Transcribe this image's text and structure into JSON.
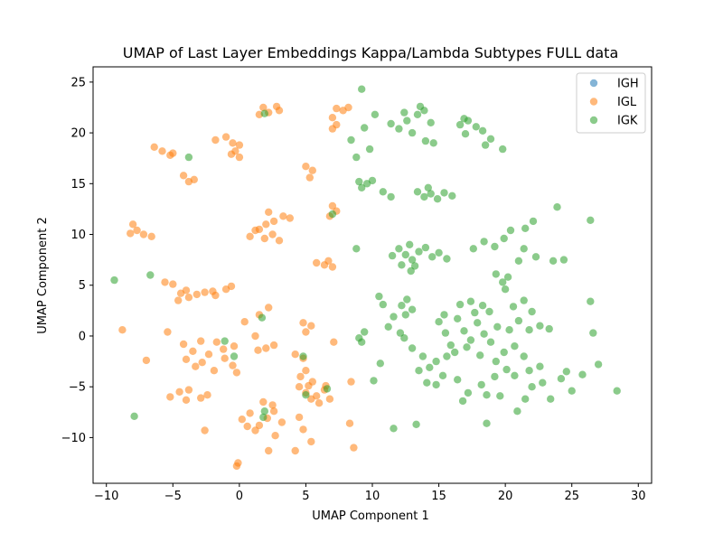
{
  "chart_data": {
    "type": "scatter",
    "title": "UMAP of Last Layer Embeddings Kappa/Lambda Subtypes FULL data",
    "xlabel": "UMAP Component 1",
    "ylabel": "UMAP Component 2",
    "xlim": [
      -11.0,
      31.0
    ],
    "ylim": [
      -14.5,
      26.5
    ],
    "xticks": [
      -10,
      -5,
      0,
      5,
      10,
      15,
      20,
      25,
      30
    ],
    "yticks": [
      -10,
      -5,
      0,
      5,
      10,
      15,
      20,
      25
    ],
    "xtick_labels": [
      "−10",
      "−5",
      "0",
      "5",
      "10",
      "15",
      "20",
      "25",
      "30"
    ],
    "ytick_labels": [
      "−10",
      "−5",
      "0",
      "5",
      "10",
      "15",
      "20",
      "25"
    ],
    "grid": false,
    "legend_position": "top-right",
    "series": [
      {
        "name": "IGH",
        "color": "#1f77b4",
        "points": []
      },
      {
        "name": "IGL",
        "color": "#ff7f0e",
        "points": [
          [
            1.8,
            22.5
          ],
          [
            2.2,
            22.0
          ],
          [
            2.8,
            22.6
          ],
          [
            1.5,
            21.8
          ],
          [
            3.0,
            22.2
          ],
          [
            7.3,
            22.4
          ],
          [
            7.8,
            22.2
          ],
          [
            7.0,
            21.5
          ],
          [
            7.3,
            20.8
          ],
          [
            7.0,
            20.4
          ],
          [
            8.2,
            22.5
          ],
          [
            -6.4,
            18.6
          ],
          [
            -5.8,
            18.2
          ],
          [
            -5.2,
            17.8
          ],
          [
            -5.0,
            18.0
          ],
          [
            -1.8,
            19.3
          ],
          [
            -1.0,
            19.6
          ],
          [
            -0.5,
            19.0
          ],
          [
            0.0,
            18.8
          ],
          [
            -0.3,
            18.2
          ],
          [
            0.0,
            17.6
          ],
          [
            -0.6,
            17.9
          ],
          [
            -4.2,
            15.8
          ],
          [
            -3.8,
            15.2
          ],
          [
            -3.4,
            15.4
          ],
          [
            5.0,
            16.7
          ],
          [
            5.5,
            16.3
          ],
          [
            5.3,
            15.6
          ],
          [
            7.0,
            12.8
          ],
          [
            7.3,
            12.3
          ],
          [
            6.8,
            11.8
          ],
          [
            -8.0,
            11.0
          ],
          [
            -7.7,
            10.4
          ],
          [
            -8.2,
            10.1
          ],
          [
            -7.2,
            10.0
          ],
          [
            -6.6,
            9.8
          ],
          [
            0.8,
            9.8
          ],
          [
            1.5,
            10.5
          ],
          [
            2.0,
            11.0
          ],
          [
            2.6,
            11.3
          ],
          [
            3.3,
            11.8
          ],
          [
            3.8,
            11.6
          ],
          [
            2.5,
            10.0
          ],
          [
            1.9,
            9.6
          ],
          [
            2.2,
            12.2
          ],
          [
            1.2,
            10.4
          ],
          [
            3.0,
            9.4
          ],
          [
            5.8,
            7.2
          ],
          [
            6.4,
            7.0
          ],
          [
            7.0,
            6.8
          ],
          [
            6.7,
            7.4
          ],
          [
            -5.6,
            5.3
          ],
          [
            -5.0,
            5.1
          ],
          [
            -4.4,
            4.2
          ],
          [
            -3.8,
            3.8
          ],
          [
            -3.2,
            4.1
          ],
          [
            -2.6,
            4.3
          ],
          [
            -1.8,
            4.0
          ],
          [
            -1.0,
            4.6
          ],
          [
            -0.6,
            4.9
          ],
          [
            -4.6,
            3.5
          ],
          [
            -2.0,
            4.4
          ],
          [
            -4.0,
            4.5
          ],
          [
            -8.8,
            0.6
          ],
          [
            -5.4,
            0.4
          ],
          [
            -7.0,
            -2.4
          ],
          [
            -4.2,
            -0.8
          ],
          [
            -3.5,
            -1.5
          ],
          [
            -2.9,
            -0.5
          ],
          [
            -2.3,
            -1.8
          ],
          [
            -1.7,
            -0.6
          ],
          [
            -1.1,
            -2.2
          ],
          [
            -0.5,
            -2.9
          ],
          [
            -1.9,
            -3.4
          ],
          [
            -2.8,
            -2.6
          ],
          [
            -4.0,
            -2.3
          ],
          [
            -3.3,
            -3.0
          ],
          [
            -1.2,
            -1.3
          ],
          [
            -0.4,
            -1.0
          ],
          [
            -0.2,
            -3.6
          ],
          [
            1.2,
            0.0
          ],
          [
            2.0,
            -1.2
          ],
          [
            2.6,
            -0.9
          ],
          [
            1.4,
            -1.4
          ],
          [
            0.4,
            1.4
          ],
          [
            1.5,
            2.1
          ],
          [
            2.2,
            2.8
          ],
          [
            -5.2,
            -6.0
          ],
          [
            -4.5,
            -5.5
          ],
          [
            -3.8,
            -5.3
          ],
          [
            -2.9,
            -6.1
          ],
          [
            -2.4,
            -5.8
          ],
          [
            -4.0,
            -6.3
          ],
          [
            -2.6,
            -9.3
          ],
          [
            4.2,
            -1.8
          ],
          [
            4.8,
            -2.2
          ],
          [
            5.0,
            -3.4
          ],
          [
            4.6,
            -4.0
          ],
          [
            5.5,
            -4.5
          ],
          [
            5.0,
            -5.6
          ],
          [
            5.8,
            -5.9
          ],
          [
            6.4,
            -5.3
          ],
          [
            6.8,
            -6.2
          ],
          [
            6.0,
            -6.6
          ],
          [
            5.4,
            -6.2
          ],
          [
            4.5,
            -5.0
          ],
          [
            5.2,
            -4.9
          ],
          [
            6.5,
            -4.9
          ],
          [
            5.0,
            0.4
          ],
          [
            5.4,
            1.0
          ],
          [
            4.8,
            1.3
          ],
          [
            7.1,
            -0.6
          ],
          [
            0.2,
            -8.2
          ],
          [
            0.8,
            -7.6
          ],
          [
            1.5,
            -8.8
          ],
          [
            2.1,
            -8.1
          ],
          [
            2.6,
            -7.4
          ],
          [
            1.8,
            -6.5
          ],
          [
            2.5,
            -6.8
          ],
          [
            3.2,
            -8.5
          ],
          [
            2.7,
            -9.8
          ],
          [
            1.2,
            -9.3
          ],
          [
            0.6,
            -8.9
          ],
          [
            4.5,
            -8.0
          ],
          [
            4.8,
            -9.2
          ],
          [
            5.4,
            -10.4
          ],
          [
            2.2,
            -11.3
          ],
          [
            4.2,
            -11.3
          ],
          [
            8.3,
            -8.6
          ],
          [
            8.6,
            -11.0
          ],
          [
            -0.1,
            -12.5
          ],
          [
            -0.2,
            -12.8
          ],
          [
            8.4,
            -4.5
          ]
        ]
      },
      {
        "name": "IGK",
        "color": "#2ca02c",
        "points": [
          [
            9.2,
            24.3
          ],
          [
            1.9,
            21.9
          ],
          [
            11.4,
            20.9
          ],
          [
            12.0,
            20.4
          ],
          [
            12.6,
            21.2
          ],
          [
            13.0,
            20.0
          ],
          [
            13.4,
            21.8
          ],
          [
            13.9,
            22.2
          ],
          [
            14.4,
            21.0
          ],
          [
            13.6,
            22.6
          ],
          [
            12.4,
            22.0
          ],
          [
            14.0,
            19.2
          ],
          [
            14.6,
            19.0
          ],
          [
            9.4,
            20.5
          ],
          [
            10.2,
            21.8
          ],
          [
            8.4,
            19.3
          ],
          [
            9.8,
            18.4
          ],
          [
            8.8,
            17.6
          ],
          [
            16.6,
            20.8
          ],
          [
            17.2,
            21.2
          ],
          [
            17.8,
            20.6
          ],
          [
            18.3,
            20.2
          ],
          [
            18.9,
            19.4
          ],
          [
            17.0,
            19.9
          ],
          [
            19.8,
            18.4
          ],
          [
            18.5,
            18.8
          ],
          [
            16.9,
            21.4
          ],
          [
            9.0,
            15.2
          ],
          [
            9.6,
            15.0
          ],
          [
            10.0,
            15.3
          ],
          [
            9.2,
            14.6
          ],
          [
            10.8,
            14.2
          ],
          [
            11.4,
            13.7
          ],
          [
            13.4,
            14.2
          ],
          [
            13.9,
            13.7
          ],
          [
            14.4,
            14.0
          ],
          [
            14.9,
            13.5
          ],
          [
            15.4,
            14.1
          ],
          [
            16.0,
            13.8
          ],
          [
            14.2,
            14.6
          ],
          [
            -3.8,
            17.6
          ],
          [
            7.0,
            12.0
          ],
          [
            8.8,
            8.6
          ],
          [
            11.5,
            7.9
          ],
          [
            12.0,
            8.6
          ],
          [
            12.5,
            8.0
          ],
          [
            13.0,
            7.5
          ],
          [
            13.5,
            8.3
          ],
          [
            14.0,
            8.7
          ],
          [
            14.5,
            7.8
          ],
          [
            15.0,
            8.2
          ],
          [
            12.8,
            9.0
          ],
          [
            13.2,
            6.9
          ],
          [
            12.2,
            7.0
          ],
          [
            15.6,
            7.6
          ],
          [
            12.9,
            6.4
          ],
          [
            17.6,
            8.6
          ],
          [
            18.4,
            9.3
          ],
          [
            19.2,
            8.8
          ],
          [
            19.9,
            9.6
          ],
          [
            20.4,
            10.4
          ],
          [
            21.0,
            7.4
          ],
          [
            21.5,
            10.6
          ],
          [
            22.1,
            11.3
          ],
          [
            23.9,
            12.7
          ],
          [
            26.4,
            11.4
          ],
          [
            22.3,
            7.8
          ],
          [
            23.6,
            7.4
          ],
          [
            24.4,
            7.5
          ],
          [
            21.4,
            8.6
          ],
          [
            19.3,
            6.1
          ],
          [
            19.8,
            5.3
          ],
          [
            20.2,
            5.8
          ],
          [
            20.0,
            4.6
          ],
          [
            -9.4,
            5.5
          ],
          [
            -6.7,
            6.0
          ],
          [
            12.2,
            3.0
          ],
          [
            12.6,
            3.6
          ],
          [
            13.0,
            2.6
          ],
          [
            12.5,
            2.1
          ],
          [
            10.5,
            3.9
          ],
          [
            10.8,
            3.1
          ],
          [
            11.6,
            1.9
          ],
          [
            11.2,
            0.9
          ],
          [
            12.1,
            0.3
          ],
          [
            12.4,
            -0.2
          ],
          [
            9.4,
            0.4
          ],
          [
            9.2,
            -0.6
          ],
          [
            10.6,
            -2.7
          ],
          [
            10.1,
            -4.4
          ],
          [
            11.6,
            -9.1
          ],
          [
            13.3,
            -8.7
          ],
          [
            15.0,
            1.4
          ],
          [
            15.5,
            0.3
          ],
          [
            15.9,
            -0.9
          ],
          [
            16.4,
            1.7
          ],
          [
            16.9,
            0.5
          ],
          [
            17.4,
            -0.4
          ],
          [
            17.9,
            1.3
          ],
          [
            18.4,
            0.2
          ],
          [
            18.9,
            -0.6
          ],
          [
            19.4,
            0.9
          ],
          [
            19.9,
            -1.6
          ],
          [
            17.7,
            2.3
          ],
          [
            16.2,
            -1.6
          ],
          [
            17.1,
            -1.1
          ],
          [
            18.1,
            -1.9
          ],
          [
            18.8,
            2.4
          ],
          [
            19.3,
            -2.5
          ],
          [
            20.3,
            0.6
          ],
          [
            16.6,
            3.1
          ],
          [
            17.4,
            3.4
          ],
          [
            15.4,
            2.1
          ],
          [
            18.3,
            3.0
          ],
          [
            20.7,
            -1.0
          ],
          [
            20.6,
            2.9
          ],
          [
            21.4,
            3.5
          ],
          [
            22.0,
            2.4
          ],
          [
            21.0,
            1.5
          ],
          [
            22.6,
            1.0
          ],
          [
            21.8,
            0.6
          ],
          [
            23.3,
            0.7
          ],
          [
            26.4,
            3.4
          ],
          [
            26.6,
            0.3
          ],
          [
            27.0,
            -2.8
          ],
          [
            21.4,
            -2.0
          ],
          [
            22.6,
            -3.0
          ],
          [
            21.8,
            -3.4
          ],
          [
            13.8,
            -2.0
          ],
          [
            14.3,
            -3.1
          ],
          [
            14.8,
            -2.5
          ],
          [
            15.3,
            -3.9
          ],
          [
            14.1,
            -4.6
          ],
          [
            13.5,
            -3.4
          ],
          [
            15.6,
            -2.0
          ],
          [
            14.8,
            -4.8
          ],
          [
            16.4,
            -4.3
          ],
          [
            17.2,
            -5.6
          ],
          [
            16.8,
            -6.4
          ],
          [
            18.2,
            -4.8
          ],
          [
            18.6,
            -5.8
          ],
          [
            19.2,
            -4.0
          ],
          [
            20.1,
            -3.3
          ],
          [
            20.7,
            -3.9
          ],
          [
            22.0,
            -5.0
          ],
          [
            22.8,
            -4.6
          ],
          [
            19.6,
            -5.9
          ],
          [
            21.5,
            -6.2
          ],
          [
            18.6,
            -8.6
          ],
          [
            20.9,
            -7.4
          ],
          [
            23.4,
            -6.2
          ],
          [
            25.0,
            -5.4
          ],
          [
            24.2,
            -4.2
          ],
          [
            25.8,
            -3.8
          ],
          [
            24.6,
            -3.5
          ],
          [
            28.4,
            -5.4
          ],
          [
            -1.1,
            -0.5
          ],
          [
            -0.4,
            -2.0
          ],
          [
            1.7,
            1.8
          ],
          [
            4.8,
            -2.0
          ],
          [
            5.0,
            -5.8
          ],
          [
            6.6,
            -5.2
          ],
          [
            -7.9,
            -7.9
          ],
          [
            1.8,
            -8.0
          ],
          [
            1.9,
            -7.4
          ],
          [
            9.0,
            -0.2
          ],
          [
            13.0,
            -1.2
          ]
        ]
      }
    ]
  }
}
